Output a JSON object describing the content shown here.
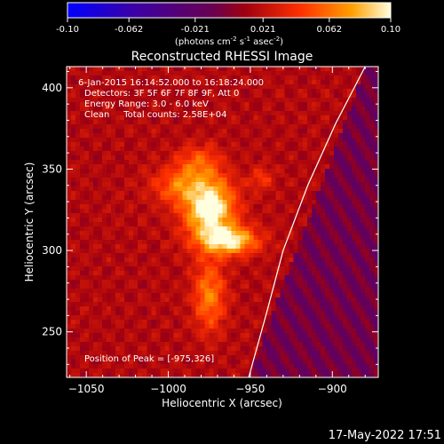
{
  "chart_data": {
    "type": "heatmap",
    "title": "Reconstructed RHESSI Image",
    "xlabel": "Heliocentric X (arcsec)",
    "ylabel": "Heliocentric Y (arcsec)",
    "xlim": [
      -1062,
      -872
    ],
    "ylim": [
      222,
      413
    ],
    "xticks": [
      -1050,
      -1000,
      -950,
      -900
    ],
    "yticks": [
      250,
      300,
      350,
      400
    ],
    "colorbar": {
      "min": -0.1,
      "max": 0.1,
      "ticks": [
        "-0.10",
        "-0.062",
        "-0.021",
        "0.021",
        "0.062",
        "0.10"
      ],
      "unit_parts": [
        "(photons cm",
        "-2",
        " s",
        "-1",
        " asec",
        "-2",
        ")"
      ]
    },
    "annotations": [
      "6-Jan-2015 16:14:52.000 to 16:18:24.000",
      "Detectors: 3F 5F 6F 7F 8F 9F, Att 0",
      "Energy Range: 3.0 - 6.0 keV",
      "Clean     Total counts: 2.58E+04"
    ],
    "peak_label": "Position of Peak = [-975,326]",
    "peak": [
      -975,
      326
    ],
    "sources": [
      {
        "x": -975,
        "y": 326,
        "sx": 11,
        "sy": 14,
        "amp": 1.0
      },
      {
        "x": -962,
        "y": 306,
        "sx": 12,
        "sy": 6,
        "amp": 0.82
      },
      {
        "x": -975,
        "y": 272,
        "sx": 7,
        "sy": 15,
        "amp": 0.55
      },
      {
        "x": -995,
        "y": 340,
        "sx": 11,
        "sy": 8,
        "amp": 0.42
      },
      {
        "x": -982,
        "y": 355,
        "sx": 9,
        "sy": 7,
        "amp": 0.35
      },
      {
        "x": -943,
        "y": 344,
        "sx": 5,
        "sy": 5,
        "amp": 0.3
      }
    ],
    "limb_curve": [
      [
        -951,
        222
      ],
      [
        -940,
        262
      ],
      [
        -930,
        300
      ],
      [
        -915,
        340
      ],
      [
        -898,
        378
      ],
      [
        -880,
        413
      ]
    ]
  },
  "footer": {
    "date": "17-May-2022 17:51"
  }
}
